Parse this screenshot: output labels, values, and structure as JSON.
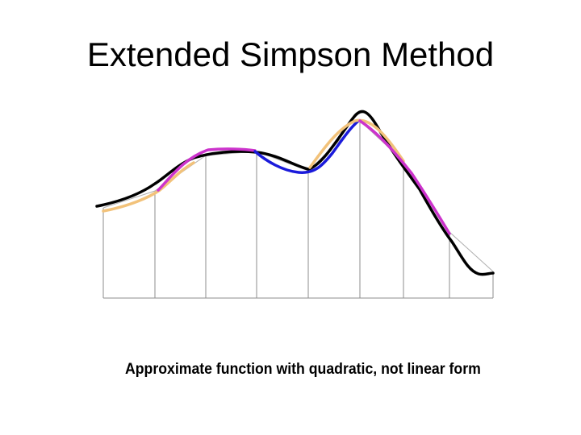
{
  "slide": {
    "title": "Extended Simpson Method",
    "caption": "Approximate function with quadratic, not linear form"
  },
  "colors": {
    "background": "#ffffff",
    "function_curve": "#000000",
    "gridlines": "#8c8c8c",
    "baseline": "#8c8c8c",
    "quadratic_orange": "#f2c27a",
    "quadratic_magenta": "#cc33cc",
    "quadratic_blue": "#1a1adb"
  }
}
